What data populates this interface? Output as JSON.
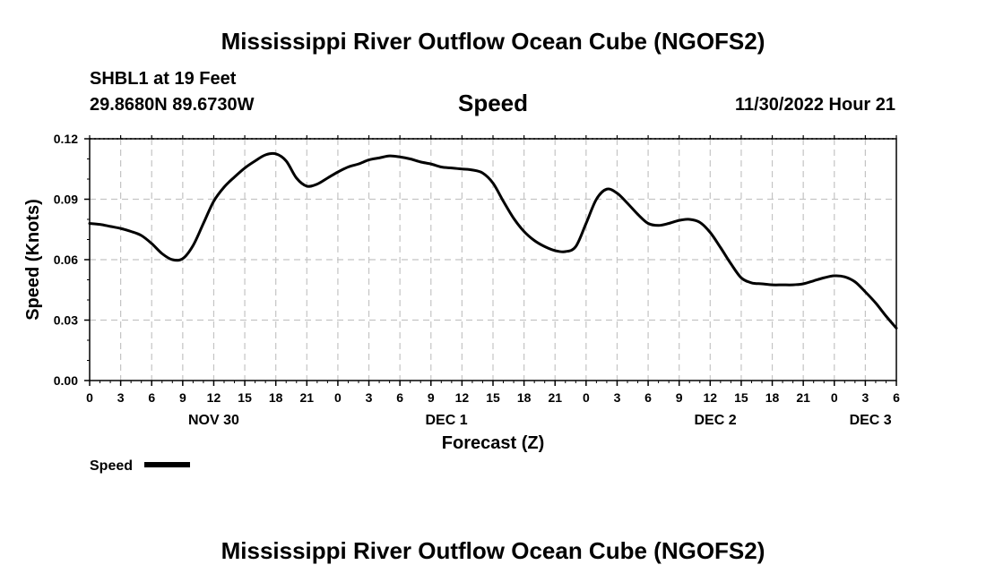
{
  "page": {
    "title_top": "Mississippi River Outflow Ocean Cube (NGOFS2)",
    "station": "SHBL1 at 19 Feet",
    "coords": "29.8680N  89.6730W",
    "datetime": "11/30/2022 Hour 21",
    "title_bottom": "Mississippi River Outflow Ocean Cube (NGOFS2)"
  },
  "chart_data": {
    "type": "line",
    "title": "Speed",
    "xlabel": "Forecast (Z)",
    "ylabel": "Speed (Knots)",
    "xlim": [
      0,
      78
    ],
    "ylim": [
      0,
      0.12
    ],
    "grid": true,
    "yticks": [
      "0.00",
      "0.03",
      "0.06",
      "0.09",
      "0.12"
    ],
    "xticks": [
      "0",
      "3",
      "6",
      "9",
      "12",
      "15",
      "18",
      "21",
      "0",
      "3",
      "6",
      "9",
      "12",
      "15",
      "18",
      "21",
      "0",
      "3",
      "6",
      "9",
      "12",
      "15",
      "18",
      "21",
      "0",
      "3",
      "6"
    ],
    "day_labels": [
      {
        "label": "NOV 30",
        "hour": 12
      },
      {
        "label": "DEC 1",
        "hour": 34.5
      },
      {
        "label": "DEC 2",
        "hour": 60.5
      },
      {
        "label": "DEC 3",
        "hour": 75.5
      }
    ],
    "legend": "Speed",
    "series": [
      {
        "name": "Speed",
        "x": [
          0,
          1,
          2,
          3,
          4,
          5,
          6,
          7,
          8,
          9,
          10,
          11,
          12,
          13,
          14,
          15,
          16,
          17,
          18,
          19,
          20,
          21,
          22,
          23,
          24,
          25,
          26,
          27,
          28,
          29,
          30,
          31,
          32,
          33,
          34,
          35,
          36,
          37,
          38,
          39,
          40,
          41,
          42,
          43,
          44,
          45,
          46,
          47,
          48,
          49,
          50,
          51,
          52,
          53,
          54,
          55,
          56,
          57,
          58,
          59,
          60,
          61,
          62,
          63,
          64,
          65,
          66,
          67,
          68,
          69,
          70,
          71,
          72,
          73,
          74,
          75,
          76,
          77,
          78
        ],
        "values": [
          0.078,
          0.0775,
          0.0765,
          0.0755,
          0.074,
          0.072,
          0.068,
          0.063,
          0.06,
          0.0605,
          0.067,
          0.078,
          0.089,
          0.096,
          0.101,
          0.1055,
          0.109,
          0.112,
          0.1125,
          0.109,
          0.1005,
          0.0965,
          0.0975,
          0.1005,
          0.1035,
          0.106,
          0.1075,
          0.1095,
          0.1105,
          0.1115,
          0.111,
          0.11,
          0.1085,
          0.1075,
          0.106,
          0.1055,
          0.105,
          0.1045,
          0.103,
          0.098,
          0.089,
          0.0805,
          0.074,
          0.0695,
          0.0665,
          0.0645,
          0.064,
          0.0665,
          0.078,
          0.09,
          0.095,
          0.093,
          0.088,
          0.0825,
          0.078,
          0.077,
          0.078,
          0.0795,
          0.08,
          0.0785,
          0.0735,
          0.066,
          0.058,
          0.051,
          0.0485,
          0.048,
          0.0475,
          0.0475,
          0.0475,
          0.048,
          0.0495,
          0.051,
          0.052,
          0.0515,
          0.049,
          0.044,
          0.0385,
          0.032,
          0.026
        ]
      }
    ]
  }
}
